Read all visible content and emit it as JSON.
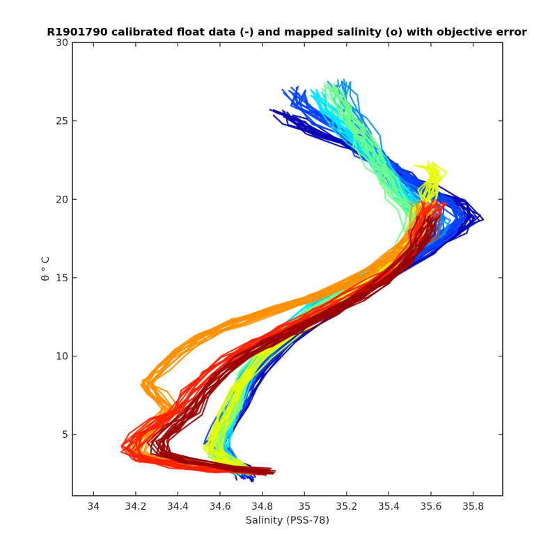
{
  "chart_data": {
    "type": "line",
    "title": "R1901790 calibrated float data (-) and mapped salinity (o) with objective error",
    "xlabel": "Salinity (PSS-78)",
    "ylabel": "θ ° C",
    "xlim": [
      33.9,
      35.94
    ],
    "ylim": [
      1.1,
      30
    ],
    "xticks": [
      "34",
      "34.2",
      "34.4",
      "34.6",
      "34.8",
      "35",
      "35.2",
      "35.4",
      "35.6",
      "35.8"
    ],
    "yticks": [
      "5",
      "10",
      "15",
      "20",
      "25",
      "30"
    ],
    "grid": false,
    "legend": "none",
    "colormap": "jet (dark blue = early profiles, dark red = late profiles)",
    "colormap_stops": [
      "#00008f",
      "#0000ff",
      "#0080ff",
      "#00ffff",
      "#80ff80",
      "#ffff00",
      "#ff8000",
      "#ff0000",
      "#800000"
    ],
    "profile_groups": [
      {
        "name": "dark-blue",
        "color": "#0000b4",
        "points": [
          [
            34.73,
            2.2
          ],
          [
            34.7,
            2.8
          ],
          [
            34.63,
            3.5
          ],
          [
            34.58,
            4.3
          ],
          [
            34.62,
            5.3
          ],
          [
            34.7,
            7.0
          ],
          [
            34.78,
            9.0
          ],
          [
            34.93,
            11.0
          ],
          [
            35.13,
            13.0
          ],
          [
            35.38,
            15.0
          ],
          [
            35.6,
            16.8
          ],
          [
            35.72,
            17.8
          ],
          [
            35.8,
            18.8
          ],
          [
            35.72,
            19.8
          ],
          [
            35.58,
            20.6
          ],
          [
            35.45,
            21.6
          ],
          [
            35.35,
            22.5
          ],
          [
            35.22,
            23.5
          ],
          [
            35.05,
            24.3
          ],
          [
            34.95,
            25.0
          ],
          [
            34.88,
            25.5
          ]
        ]
      },
      {
        "name": "blue",
        "color": "#0044ff",
        "points": [
          [
            34.72,
            2.4
          ],
          [
            34.68,
            3.0
          ],
          [
            34.62,
            3.6
          ],
          [
            34.57,
            4.4
          ],
          [
            34.61,
            5.4
          ],
          [
            34.68,
            7.0
          ],
          [
            34.75,
            9.0
          ],
          [
            34.9,
            11.0
          ],
          [
            35.1,
            13.0
          ],
          [
            35.35,
            15.0
          ],
          [
            35.55,
            16.7
          ],
          [
            35.66,
            17.8
          ],
          [
            35.72,
            18.7
          ],
          [
            35.65,
            19.8
          ],
          [
            35.52,
            20.8
          ],
          [
            35.4,
            22.0
          ],
          [
            35.3,
            23.0
          ],
          [
            35.2,
            24.0
          ],
          [
            35.08,
            25.0
          ],
          [
            34.98,
            26.0
          ],
          [
            34.95,
            27.0
          ]
        ]
      },
      {
        "name": "light-blue",
        "color": "#0090ff",
        "points": [
          [
            34.7,
            2.6
          ],
          [
            34.66,
            3.2
          ],
          [
            34.6,
            3.9
          ],
          [
            34.6,
            4.6
          ],
          [
            34.63,
            5.6
          ],
          [
            34.67,
            7.2
          ],
          [
            34.74,
            9.2
          ],
          [
            34.88,
            11.2
          ],
          [
            35.08,
            13.2
          ],
          [
            35.33,
            15.0
          ],
          [
            35.5,
            16.6
          ],
          [
            35.6,
            17.6
          ],
          [
            35.64,
            18.6
          ],
          [
            35.58,
            19.6
          ],
          [
            35.47,
            20.6
          ],
          [
            35.38,
            21.8
          ],
          [
            35.33,
            22.8
          ],
          [
            35.3,
            24.0
          ],
          [
            35.25,
            25.2
          ],
          [
            35.2,
            26.4
          ],
          [
            35.17,
            27.5
          ]
        ]
      },
      {
        "name": "cyan",
        "color": "#00e6ff",
        "points": [
          [
            34.72,
            2.6
          ],
          [
            34.67,
            3.2
          ],
          [
            34.6,
            3.9
          ],
          [
            34.62,
            4.8
          ],
          [
            34.66,
            5.9
          ],
          [
            34.69,
            7.3
          ],
          [
            34.75,
            9.3
          ],
          [
            34.87,
            11.3
          ],
          [
            35.06,
            13.3
          ],
          [
            35.3,
            15.0
          ],
          [
            35.45,
            16.5
          ],
          [
            35.53,
            17.5
          ],
          [
            35.56,
            18.5
          ],
          [
            35.52,
            19.5
          ],
          [
            35.46,
            20.5
          ],
          [
            35.4,
            21.5
          ],
          [
            35.34,
            22.5
          ],
          [
            35.27,
            23.5
          ],
          [
            35.2,
            24.5
          ],
          [
            35.13,
            25.6
          ],
          [
            35.06,
            26.8
          ]
        ]
      },
      {
        "name": "green",
        "color": "#70ff88",
        "points": [
          [
            34.72,
            2.6
          ],
          [
            34.66,
            3.1
          ],
          [
            34.6,
            3.7
          ],
          [
            34.58,
            4.6
          ],
          [
            34.62,
            5.6
          ],
          [
            34.66,
            6.8
          ],
          [
            34.72,
            8.8
          ],
          [
            34.84,
            10.8
          ],
          [
            35.03,
            12.8
          ],
          [
            35.28,
            14.8
          ],
          [
            35.43,
            16.2
          ],
          [
            35.5,
            17.2
          ],
          [
            35.53,
            18.2
          ],
          [
            35.5,
            19.2
          ],
          [
            35.45,
            20.2
          ],
          [
            35.4,
            21.2
          ],
          [
            35.36,
            22.2
          ],
          [
            35.3,
            23.4
          ],
          [
            35.24,
            24.6
          ],
          [
            35.18,
            25.8
          ],
          [
            35.12,
            27.2
          ]
        ]
      },
      {
        "name": "yellow",
        "color": "#e6ff00",
        "points": [
          [
            34.74,
            2.6
          ],
          [
            34.68,
            3.0
          ],
          [
            34.6,
            3.5
          ],
          [
            34.56,
            4.2
          ],
          [
            34.58,
            5.2
          ],
          [
            34.62,
            6.2
          ],
          [
            34.68,
            8.0
          ],
          [
            34.8,
            10.0
          ],
          [
            34.98,
            12.0
          ],
          [
            35.22,
            14.0
          ],
          [
            35.38,
            15.6
          ],
          [
            35.47,
            16.8
          ],
          [
            35.52,
            18.0
          ],
          [
            35.55,
            19.2
          ],
          [
            35.58,
            20.4
          ],
          [
            35.6,
            21.6
          ],
          [
            35.58,
            22.2
          ]
        ]
      },
      {
        "name": "orange",
        "color": "#ff9000",
        "points": [
          [
            34.62,
            2.9
          ],
          [
            34.45,
            3.1
          ],
          [
            34.28,
            3.4
          ],
          [
            34.2,
            3.9
          ],
          [
            34.22,
            4.6
          ],
          [
            34.3,
            5.6
          ],
          [
            34.36,
            6.7
          ],
          [
            34.3,
            7.5
          ],
          [
            34.25,
            8.3
          ],
          [
            34.32,
            9.3
          ],
          [
            34.4,
            10.2
          ],
          [
            34.52,
            11.2
          ],
          [
            34.68,
            12.2
          ],
          [
            34.88,
            13.0
          ],
          [
            35.05,
            13.8
          ],
          [
            35.2,
            14.6
          ],
          [
            35.32,
            15.5
          ],
          [
            35.42,
            16.5
          ],
          [
            35.5,
            17.5
          ],
          [
            35.55,
            18.8
          ],
          [
            35.58,
            19.8
          ]
        ]
      },
      {
        "name": "red",
        "color": "#ff2000",
        "points": [
          [
            34.8,
            2.6
          ],
          [
            34.6,
            2.8
          ],
          [
            34.4,
            3.1
          ],
          [
            34.22,
            3.5
          ],
          [
            34.18,
            4.1
          ],
          [
            34.22,
            4.9
          ],
          [
            34.32,
            5.8
          ],
          [
            34.4,
            6.6
          ],
          [
            34.46,
            7.6
          ],
          [
            34.55,
            8.8
          ],
          [
            34.65,
            9.8
          ],
          [
            34.78,
            10.8
          ],
          [
            34.92,
            11.8
          ],
          [
            35.08,
            12.8
          ],
          [
            35.22,
            13.8
          ],
          [
            35.35,
            14.8
          ],
          [
            35.45,
            15.8
          ],
          [
            35.52,
            16.8
          ],
          [
            35.56,
            17.8
          ],
          [
            35.6,
            18.8
          ],
          [
            35.62,
            19.8
          ]
        ]
      },
      {
        "name": "dark-red",
        "color": "#9a0000",
        "points": [
          [
            34.82,
            2.6
          ],
          [
            34.62,
            2.9
          ],
          [
            34.44,
            3.3
          ],
          [
            34.32,
            3.8
          ],
          [
            34.3,
            4.5
          ],
          [
            34.38,
            5.4
          ],
          [
            34.46,
            6.4
          ],
          [
            34.52,
            7.6
          ],
          [
            34.6,
            8.8
          ],
          [
            34.7,
            9.8
          ],
          [
            34.82,
            10.8
          ],
          [
            34.97,
            11.8
          ],
          [
            35.12,
            12.8
          ],
          [
            35.26,
            13.8
          ],
          [
            35.38,
            14.8
          ],
          [
            35.46,
            15.8
          ],
          [
            35.52,
            16.8
          ],
          [
            35.56,
            17.8
          ],
          [
            35.58,
            18.8
          ]
        ]
      }
    ]
  }
}
